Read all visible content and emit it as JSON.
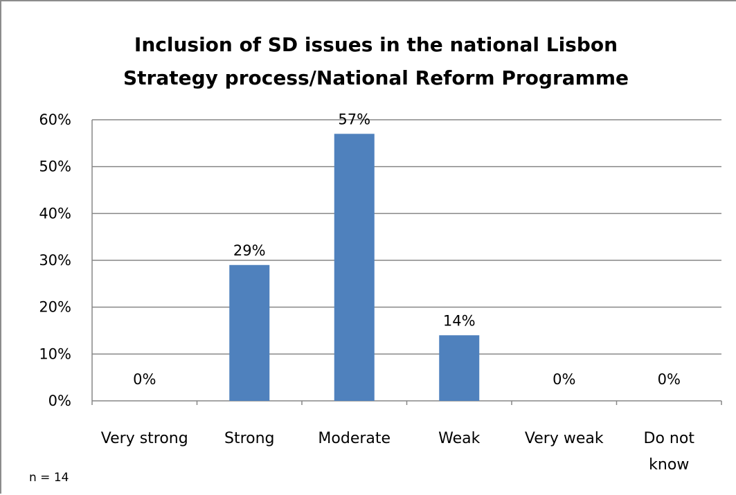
{
  "chart_data": {
    "type": "bar",
    "title": "Inclusion of SD issues in the national Lisbon Strategy process/National Reform Programme",
    "title_lines": [
      "Inclusion of SD issues in the national Lisbon",
      "Strategy process/National Reform Programme"
    ],
    "categories": [
      "Very strong",
      "Strong",
      "Moderate",
      "Weak",
      "Very weak",
      "Do not know"
    ],
    "category_lines": [
      [
        "Very strong"
      ],
      [
        "Strong"
      ],
      [
        "Moderate"
      ],
      [
        "Weak"
      ],
      [
        "Very weak"
      ],
      [
        "Do not",
        "know"
      ]
    ],
    "values": [
      0,
      29,
      57,
      14,
      0,
      0
    ],
    "data_labels": [
      "0%",
      "29%",
      "57%",
      "14%",
      "0%",
      "0%"
    ],
    "y_ticks": [
      "0%",
      "10%",
      "20%",
      "30%",
      "40%",
      "50%",
      "60%"
    ],
    "ylim": [
      0,
      60
    ],
    "xlabel": "",
    "ylabel": "",
    "grid": true,
    "legend": "none",
    "bar_color": "#4f81bd",
    "gridline_color": "#868686",
    "note": "n = 14"
  }
}
